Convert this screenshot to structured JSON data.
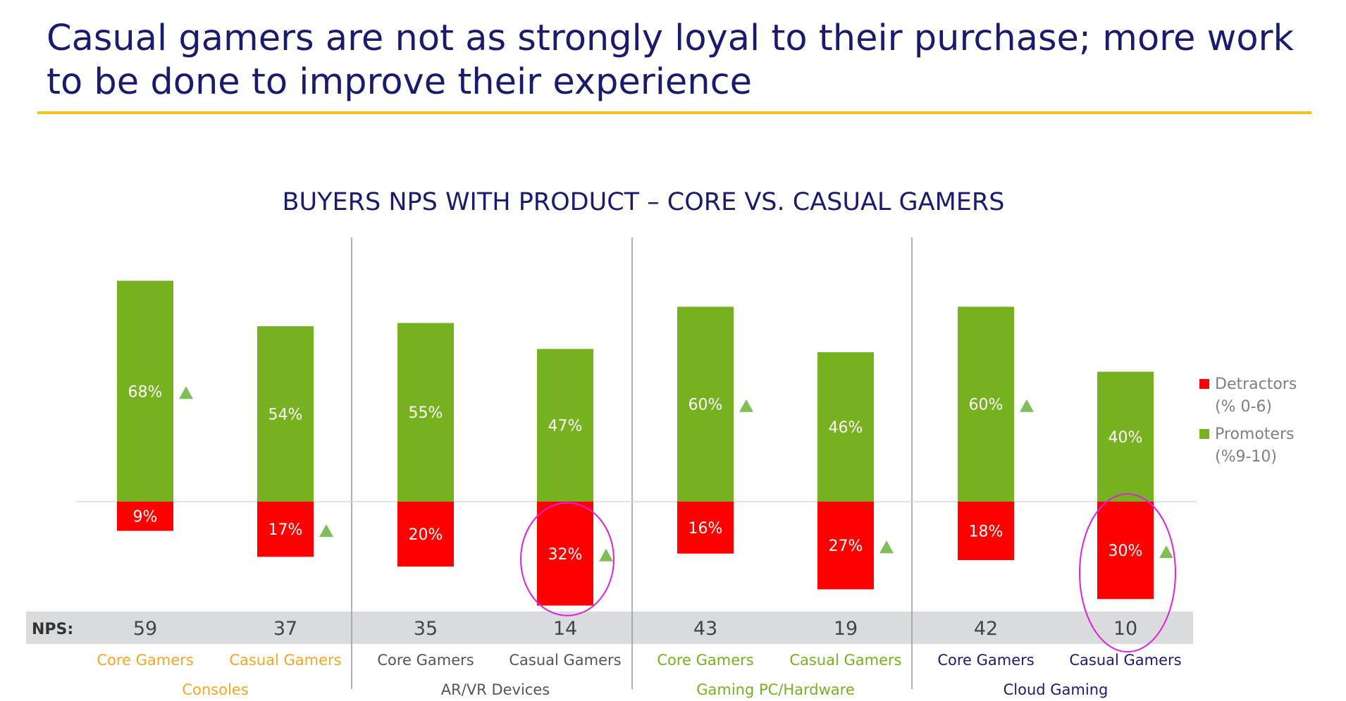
{
  "slide": {
    "title": "Casual gamers are not as strongly loyal to their purchase; more work to be done to improve their experience"
  },
  "colors": {
    "promoters": "#76b11f",
    "detractors": "#ff0000",
    "title": "#1b1b6e",
    "rule": "#f2c31a",
    "nps_band": "#d9dbdd",
    "marker": "#7fbf5a",
    "highlight": "#e020e0",
    "orange": "#f5a623",
    "green": "#76b11f",
    "gray": "#555555",
    "navy": "#1b1b6e"
  },
  "chart_data": {
    "type": "bar",
    "title": "BUYERS NPS WITH PRODUCT – CORE VS. CASUAL GAMERS",
    "nps_label": "NPS:",
    "categories": [
      "Core Gamers",
      "Casual Gamers",
      "Core Gamers",
      "Casual Gamers",
      "Core Gamers",
      "Casual Gamers",
      "Core Gamers",
      "Casual Gamers"
    ],
    "groups": [
      {
        "name": "Consoles",
        "color": "orange"
      },
      {
        "name": "AR/VR Devices",
        "color": "gray"
      },
      {
        "name": "Gaming PC/Hardware",
        "color": "green"
      },
      {
        "name": "Cloud Gaming",
        "color": "navy"
      }
    ],
    "series": [
      {
        "name": "Promoters",
        "values": [
          68,
          54,
          55,
          47,
          60,
          46,
          60,
          40
        ],
        "labels": [
          "68%",
          "54%",
          "55%",
          "47%",
          "60%",
          "46%",
          "60%",
          "40%"
        ],
        "up_marker": [
          true,
          false,
          false,
          false,
          true,
          false,
          true,
          false
        ]
      },
      {
        "name": "Detractors",
        "values": [
          9,
          17,
          20,
          32,
          16,
          27,
          18,
          30
        ],
        "labels": [
          "9%",
          "17%",
          "20%",
          "32%",
          "16%",
          "27%",
          "18%",
          "30%"
        ],
        "up_marker": [
          false,
          true,
          false,
          true,
          false,
          true,
          false,
          true
        ]
      }
    ],
    "nps": [
      "59",
      "37",
      "35",
      "14",
      "43",
      "19",
      "42",
      "10"
    ],
    "highlighted": [
      3,
      7
    ],
    "legend": [
      {
        "series": "Detractors",
        "line1": "Detractors",
        "line2": "(% 0-6)"
      },
      {
        "series": "Promoters",
        "line1": "Promoters",
        "line2": "(%9-10)"
      }
    ],
    "legend_position": "right",
    "grid": false
  }
}
